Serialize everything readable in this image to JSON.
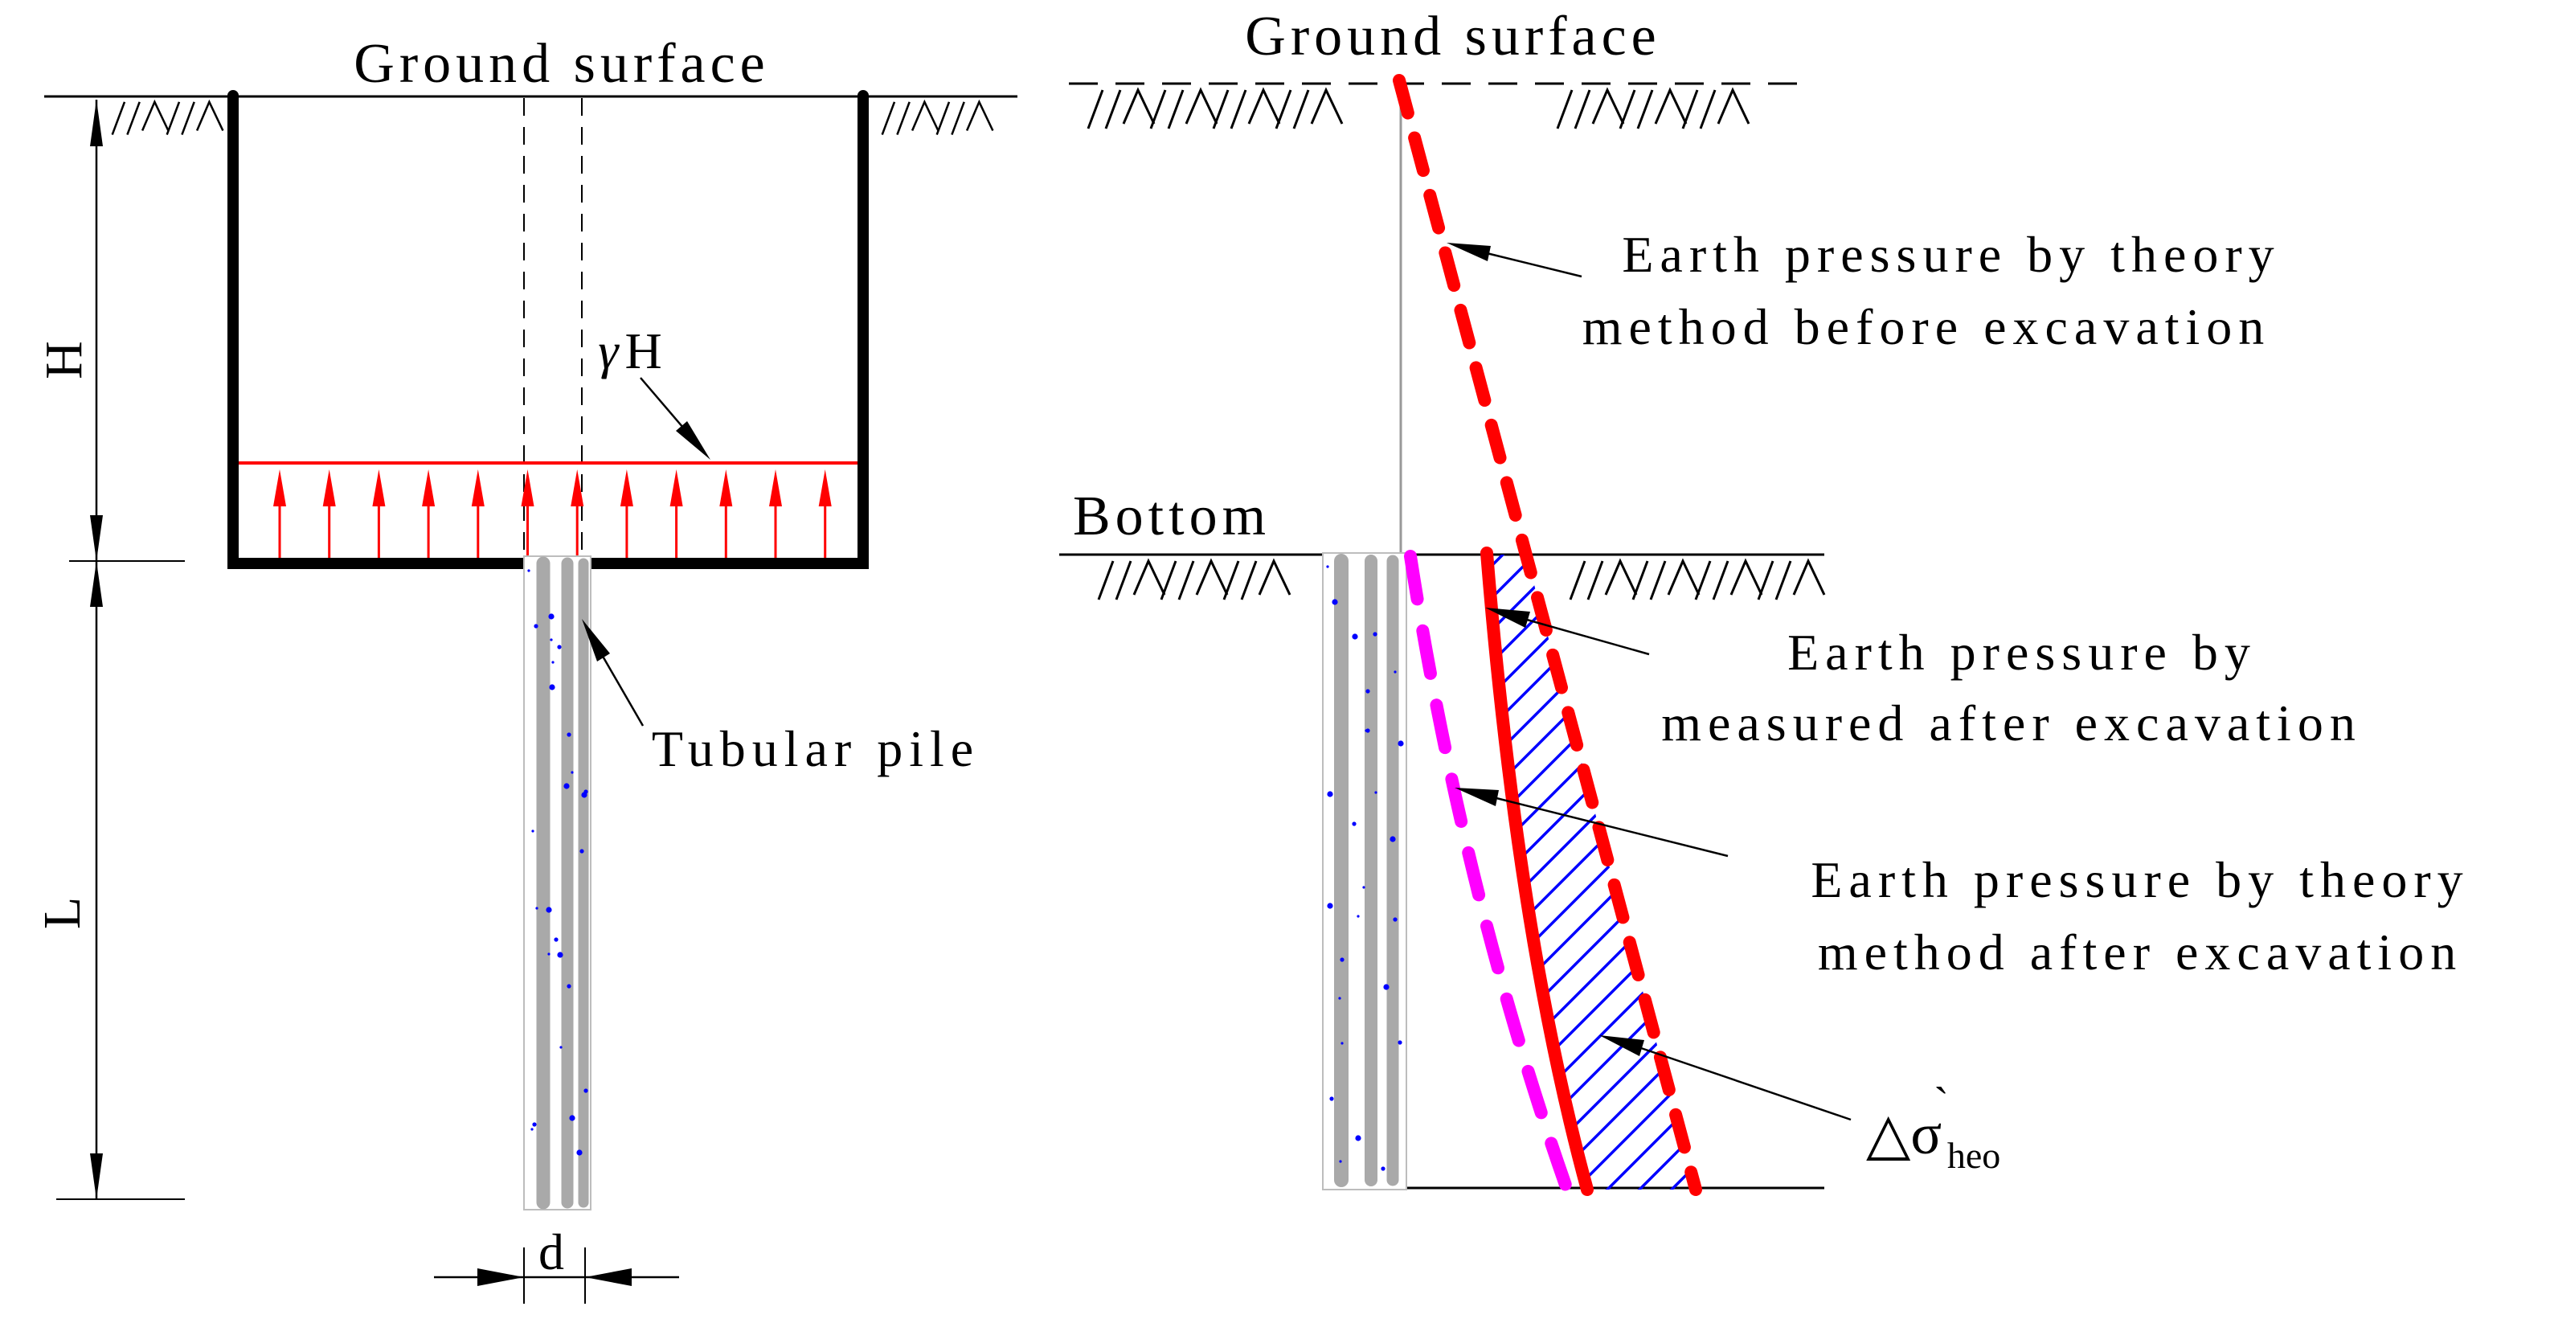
{
  "left_figure": {
    "ground_surface_label": "Ground surface",
    "excavation_depth_label": "H",
    "pile_length_label": "L",
    "surcharge_gamma": "γ",
    "surcharge_h": "H",
    "pile_label": "Tubular pile",
    "pile_diameter_label": "d"
  },
  "right_figure": {
    "ground_surface_label": "Ground surface",
    "bottom_label": "Bottom",
    "legend_theory_before": {
      "line1": "Earth pressure by theory",
      "line2": "method before excavation"
    },
    "legend_measured_after": {
      "line1": "Earth pressure by",
      "line2": "measured after excavation"
    },
    "legend_theory_after": {
      "line1": "Earth pressure by theory",
      "line2": "method after excavation"
    },
    "stress_increment": {
      "symbol": "△σ",
      "accent": "`",
      "subscript": "heo"
    }
  },
  "colors": {
    "pressure_red": "#ff0000",
    "measured_magenta": "#ff00ff",
    "hatch_blue": "#0000ff",
    "pile_gray": "#a9a9a9",
    "ink_black": "#000000",
    "background": "#ffffff"
  }
}
